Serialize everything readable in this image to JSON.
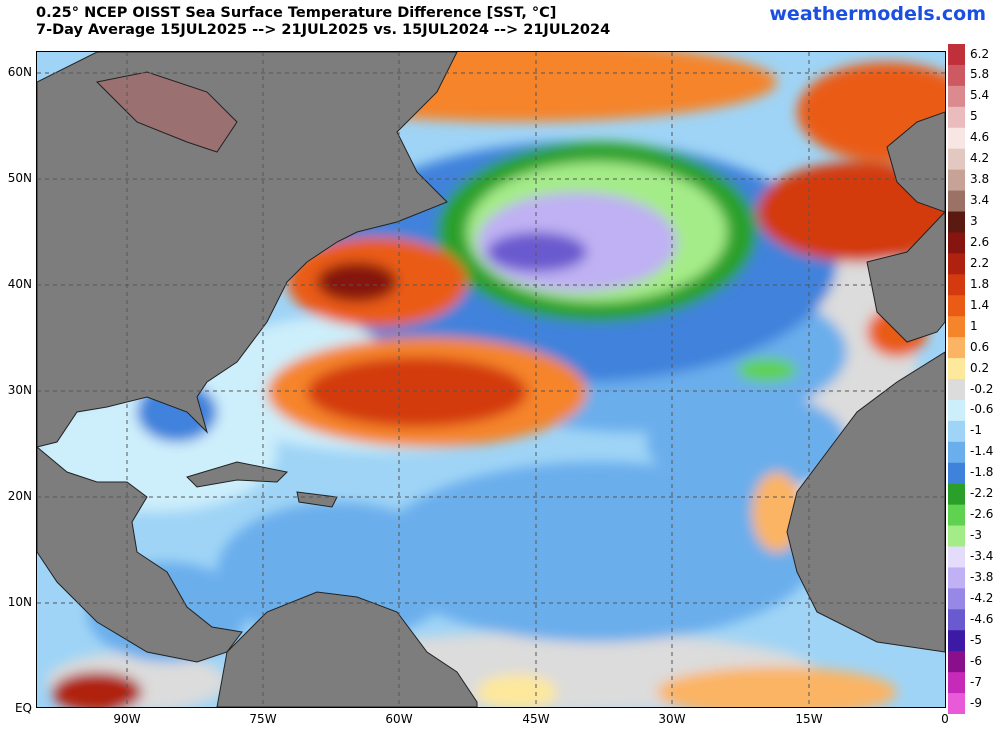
{
  "header": {
    "title_line1": "0.25° NCEP OISST Sea Surface Temperature Difference [SST, °C]",
    "title_line2": "7-Day Average 15JUL2025 --> 21JUL2025  vs. 15JUL2024 --> 21JUL2024",
    "brand": "weathermodels.com"
  },
  "map": {
    "lat_labels": [
      "60N",
      "50N",
      "40N",
      "30N",
      "20N",
      "10N",
      "EQ"
    ],
    "lon_labels": [
      "90W",
      "75W",
      "60W",
      "45W",
      "30W",
      "15W",
      "0"
    ],
    "land_color": "#7d7d7d",
    "border_color": "#222222",
    "grid_style": "dashed"
  },
  "colorbar": {
    "labels": [
      "6.2",
      "5.8",
      "5.4",
      "5",
      "4.6",
      "4.2",
      "3.8",
      "3.4",
      "3",
      "2.6",
      "2.2",
      "1.8",
      "1.4",
      "1",
      "0.6",
      "0.2",
      "-0.2",
      "-0.6",
      "-1",
      "-1.4",
      "-1.8",
      "-2.2",
      "-2.6",
      "-3",
      "-3.4",
      "-3.8",
      "-4.2",
      "-4.6",
      "-5",
      "-6",
      "-7",
      "-9"
    ],
    "colors": [
      "#c0303a",
      "#cd5a62",
      "#db8a8f",
      "#ebbcbe",
      "#f7e6e3",
      "#e2c8c0",
      "#c7a297",
      "#9c7266",
      "#5a1a12",
      "#85150e",
      "#b02210",
      "#d33a10",
      "#ea5b16",
      "#f5842a",
      "#fbb464",
      "#fde89c",
      "#dcdcdc",
      "#cdeefb",
      "#9fd4f6",
      "#6aaeec",
      "#3f82dc",
      "#2aa02a",
      "#5fd24f",
      "#a4ec88",
      "#e3dcfb",
      "#bfb1f3",
      "#9787e6",
      "#6a5acf",
      "#3d1aa6",
      "#8a0f8a",
      "#c52bb8",
      "#e85ad7"
    ]
  }
}
